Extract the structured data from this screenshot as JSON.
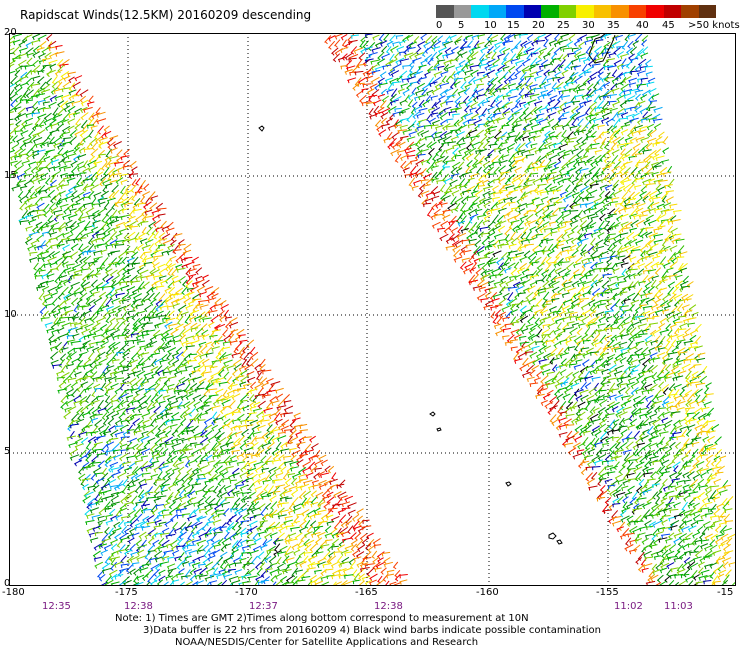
{
  "title": "Rapidscat Winds(12.5KM) 20160209 descending",
  "legend": {
    "unit_label": ">50 knots",
    "ticks": [
      "0",
      "5",
      "10",
      "15",
      "20",
      "25",
      "30",
      "35",
      "40",
      "45"
    ],
    "colors": [
      "#555555",
      "#999999",
      "#00d8f0",
      "#00a8f8",
      "#0048f0",
      "#0000b0",
      "#00b000",
      "#80d000",
      "#f8f000",
      "#f8c000",
      "#f89000",
      "#f84000",
      "#f00000",
      "#c00000",
      "#a04000",
      "#603010",
      "#f000f0",
      "#c000c0",
      "#8000a0",
      "#500080"
    ]
  },
  "map": {
    "lat_labels": [
      "20",
      "15",
      "10",
      "5",
      "0"
    ],
    "lon_labels": [
      "-180",
      "-175",
      "-170",
      "-165",
      "-160",
      "-155",
      "-15"
    ],
    "time_labels": [
      "12:35",
      "12:38",
      "12:37",
      "12:38",
      "11:02",
      "11:03"
    ],
    "contamination_color": "#000000"
  },
  "notes": [
    "Note: 1) Times are GMT 2)Times along bottom correspond to measurement at 10N",
    "3)Data buffer is 22 hrs from 20160209 4) Black wind barbs indicate possible contamination",
    "NOAA/NESDIS/Center for Satellite Applications and Research"
  ]
}
